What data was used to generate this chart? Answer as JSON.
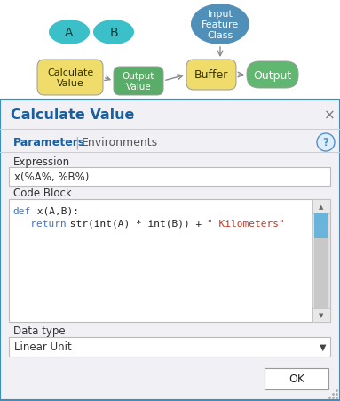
{
  "bg_top": "#ffffff",
  "dialog_bg": "#f0f0f5",
  "dialog_border": "#3a8fc0",
  "title_color": "#1a5fa0",
  "title_text": "Calculate Value",
  "params_color": "#1a5fa0",
  "params_text": "Parameters",
  "env_text": "Environments",
  "expr_label": "Expression",
  "expr_value": "x(%A%, %B%)",
  "code_label": "Code Block",
  "data_type_label": "Data type",
  "data_type_value": "Linear Unit",
  "ok_text": "OK",
  "node_A": "A",
  "node_B": "B",
  "node_calc": "Calculate\nValue",
  "node_output_val": "Output\nValue",
  "node_buffer": "Buffer",
  "node_input_fc": "Input\nFeature\nClass",
  "node_final": "Output",
  "color_teal": "#3bbfc9",
  "color_blue_oval": "#5090b8",
  "color_yellow": "#f0dc6a",
  "color_green_oval": "#60b870",
  "color_green_rect": "#5aad68",
  "arrow_color": "#888888",
  "scrollbar_blue": "#6ab4dc",
  "scrollbar_gray": "#d0d0d0",
  "code_blue": "#4472c4",
  "code_red": "#c0392b",
  "code_black": "#222222",
  "help_circle_fill": "#ddeeff",
  "help_circle_border": "#5590c8"
}
